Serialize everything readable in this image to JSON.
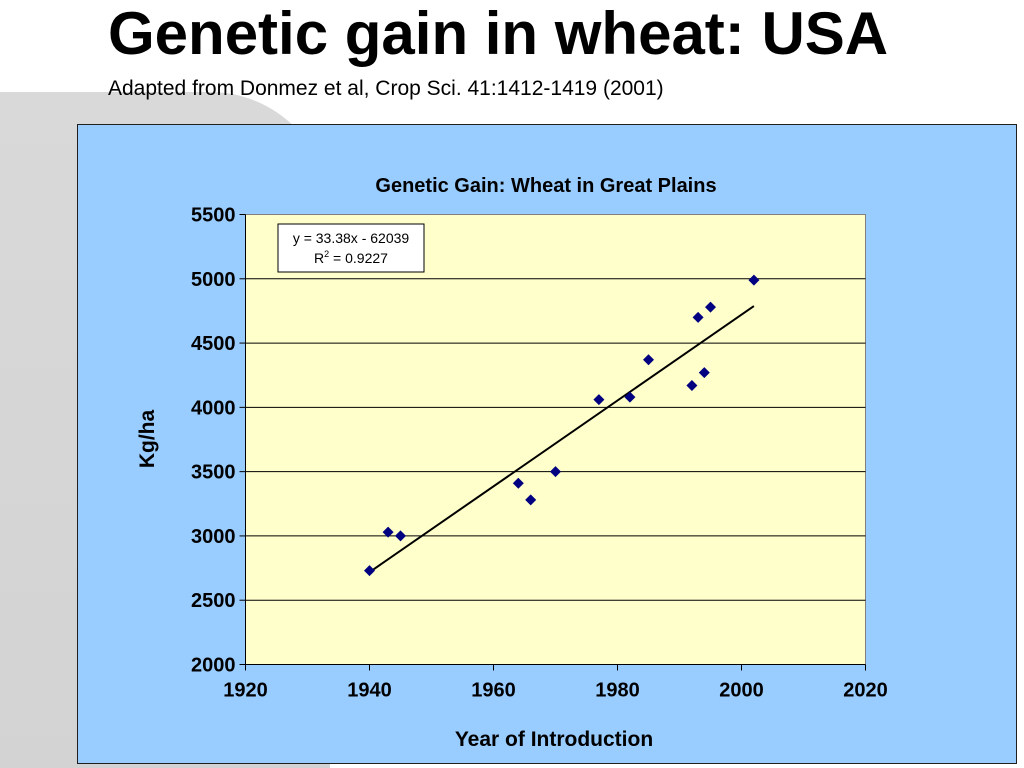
{
  "slide": {
    "title": "Genetic gain in wheat: USA",
    "subtitle": "Adapted from Donmez et al, Crop Sci. 41:1412-1419 (2001)"
  },
  "colors": {
    "chart_background": "#99ccff",
    "plot_background": "#ffffcc",
    "marker": "#000080",
    "trendline": "#000000"
  },
  "chart_data": {
    "type": "scatter",
    "title": "Genetic Gain: Wheat in Great Plains",
    "xlabel": "Year of Introduction",
    "ylabel": "Kg/ha",
    "xlim": [
      1920,
      2020
    ],
    "ylim": [
      2000,
      5500
    ],
    "x_ticks": [
      1920,
      1940,
      1960,
      1980,
      2000,
      2020
    ],
    "y_ticks": [
      2000,
      2500,
      3000,
      3500,
      4000,
      4500,
      5000,
      5500
    ],
    "grid": "horizontal",
    "legend": "none",
    "points": [
      {
        "x": 1940,
        "y": 2730
      },
      {
        "x": 1943,
        "y": 3030
      },
      {
        "x": 1945,
        "y": 3000
      },
      {
        "x": 1964,
        "y": 3410
      },
      {
        "x": 1966,
        "y": 3280
      },
      {
        "x": 1970,
        "y": 3500
      },
      {
        "x": 1977,
        "y": 4060
      },
      {
        "x": 1982,
        "y": 4080
      },
      {
        "x": 1985,
        "y": 4370
      },
      {
        "x": 1992,
        "y": 4170
      },
      {
        "x": 1993,
        "y": 4700
      },
      {
        "x": 1994,
        "y": 4270
      },
      {
        "x": 1995,
        "y": 4780
      },
      {
        "x": 2002,
        "y": 4990
      }
    ],
    "trendline": {
      "slope": 33.38,
      "intercept": -62039,
      "x_range": [
        1940,
        2002
      ],
      "equation": "y = 33.38x - 62039",
      "r2_label": "R",
      "r2_sup": "2",
      "r2_value": " = 0.9227"
    }
  }
}
